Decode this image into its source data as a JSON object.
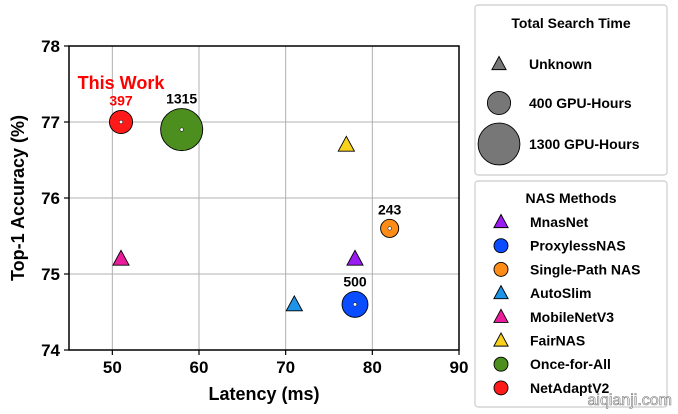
{
  "chart_data": {
    "type": "scatter",
    "xlabel": "Latency (ms)",
    "ylabel": "Top-1 Accuracy (%)",
    "xlim": [
      45,
      90
    ],
    "ylim": [
      74,
      78
    ],
    "xticks": [
      50,
      60,
      70,
      80,
      90
    ],
    "yticks": [
      74,
      75,
      76,
      77,
      78
    ],
    "grid": true,
    "annotation": {
      "text": "This Work",
      "color": "#ff0000"
    },
    "series": [
      {
        "name": "MnasNet",
        "marker": "triangle",
        "color": "#9b1cf2",
        "points": [
          {
            "x": 78,
            "y": 75.2
          }
        ]
      },
      {
        "name": "ProxylessNAS",
        "marker": "circle",
        "color": "#0a4cff",
        "points": [
          {
            "x": 78,
            "y": 74.6,
            "gpu_hours": 500,
            "label": "500"
          }
        ]
      },
      {
        "name": "Single-Path NAS",
        "marker": "circle",
        "color": "#ff8c17",
        "points": [
          {
            "x": 82,
            "y": 75.6,
            "gpu_hours": 243,
            "label": "243"
          }
        ]
      },
      {
        "name": "AutoSlim",
        "marker": "triangle",
        "color": "#1c94e8",
        "points": [
          {
            "x": 71,
            "y": 74.6
          }
        ]
      },
      {
        "name": "MobileNetV3",
        "marker": "triangle",
        "color": "#ea1c9c",
        "points": [
          {
            "x": 51,
            "y": 75.2
          }
        ]
      },
      {
        "name": "FairNAS",
        "marker": "triangle",
        "color": "#f7d11c",
        "points": [
          {
            "x": 77,
            "y": 76.7
          }
        ]
      },
      {
        "name": "Once-for-All",
        "marker": "circle",
        "color": "#4c8f1e",
        "points": [
          {
            "x": 58,
            "y": 76.9,
            "gpu_hours": 1315,
            "label": "1315"
          }
        ]
      },
      {
        "name": "NetAdaptV2",
        "marker": "circle",
        "color": "#ff1a1a",
        "points": [
          {
            "x": 51,
            "y": 77.0,
            "gpu_hours": 397,
            "label": "397",
            "label_color": "#ff0000"
          }
        ]
      }
    ],
    "legend_size": {
      "title": "Total Search Time",
      "placement": "right-top",
      "entries": [
        {
          "label": "Unknown",
          "marker": "triangle"
        },
        {
          "label": "400 GPU-Hours",
          "marker": "circle",
          "gpu_hours": 400
        },
        {
          "label": "1300 GPU-Hours",
          "marker": "circle",
          "gpu_hours": 1300
        }
      ]
    },
    "legend_methods": {
      "title": "NAS Methods",
      "placement": "right-bottom"
    }
  },
  "watermark": "aiqianji.com"
}
